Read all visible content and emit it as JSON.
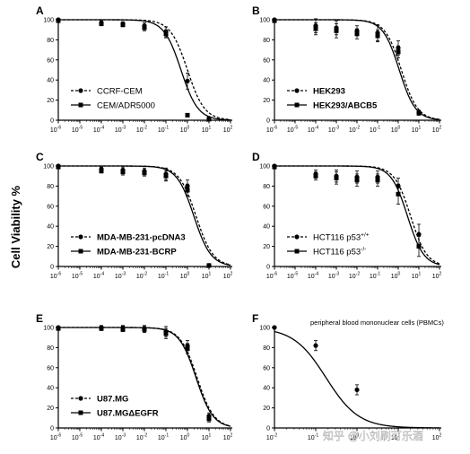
{
  "y_axis_label": "Cell Viability  %",
  "watermark": "知乎 @小刘刷可乐酒",
  "chart_data": [
    {
      "panel": "A",
      "type": "scatter",
      "xscale": "log",
      "xlim": [
        -6,
        2
      ],
      "ylim": [
        0,
        100
      ],
      "x_ticks": [
        -6,
        -5,
        -4,
        -3,
        -2,
        -1,
        0,
        1,
        2
      ],
      "y_ticks": [
        0,
        20,
        40,
        60,
        80,
        100
      ],
      "legend_style": "normal",
      "legend_placement": "bottom-left",
      "series": [
        {
          "name": "CCRF-CEM",
          "marker": "circle",
          "line": "dashed",
          "ic50_log": 0.0,
          "points": [
            [
              -6,
              100,
              1
            ],
            [
              -4,
              97,
              2
            ],
            [
              -3,
              96,
              2
            ],
            [
              -2,
              94,
              3
            ],
            [
              -1,
              88,
              5
            ],
            [
              0,
              39,
              8
            ],
            [
              1,
              2,
              1
            ]
          ]
        },
        {
          "name": "CEM/ADR5000",
          "marker": "square",
          "line": "solid",
          "ic50_log": -0.3,
          "points": [
            [
              -6,
              99,
              1
            ],
            [
              -4,
              96,
              2
            ],
            [
              -3,
              95,
              2
            ],
            [
              -2,
              92,
              3
            ],
            [
              -1,
              86,
              4
            ],
            [
              0,
              5,
              1
            ],
            [
              1,
              1,
              1
            ]
          ]
        }
      ]
    },
    {
      "panel": "B",
      "type": "scatter",
      "xscale": "log",
      "xlim": [
        -6,
        2
      ],
      "ylim": [
        0,
        100
      ],
      "x_ticks": [
        -6,
        -5,
        -4,
        -3,
        -2,
        -1,
        0,
        1,
        2
      ],
      "y_ticks": [
        0,
        20,
        40,
        60,
        80,
        100
      ],
      "legend_style": "bold",
      "legend_placement": "bottom-left",
      "series": [
        {
          "name": "HEK293",
          "marker": "circle",
          "line": "dashed",
          "ic50_log": 0.15,
          "points": [
            [
              -6,
              100,
              1
            ],
            [
              -4,
              94,
              7
            ],
            [
              -3,
              92,
              7
            ],
            [
              -2,
              89,
              5
            ],
            [
              -1,
              87,
              8
            ],
            [
              0,
              72,
              7
            ],
            [
              1,
              8,
              2
            ]
          ]
        },
        {
          "name": "HEK293/ABCB5",
          "marker": "square",
          "line": "solid",
          "ic50_log": 0.05,
          "points": [
            [
              -6,
              99,
              1
            ],
            [
              -4,
              91,
              6
            ],
            [
              -3,
              89,
              7
            ],
            [
              -2,
              86,
              5
            ],
            [
              -1,
              84,
              6
            ],
            [
              0,
              68,
              6
            ],
            [
              1,
              7,
              2
            ]
          ]
        }
      ]
    },
    {
      "panel": "C",
      "type": "scatter",
      "xscale": "log",
      "xlim": [
        -6,
        2
      ],
      "ylim": [
        0,
        100
      ],
      "x_ticks": [
        -6,
        -5,
        -4,
        -3,
        -2,
        -1,
        0,
        1,
        2
      ],
      "y_ticks": [
        0,
        20,
        40,
        60,
        80,
        100
      ],
      "legend_style": "bold",
      "legend_placement": "bottom-left",
      "series": [
        {
          "name": "MDA-MB-231-pcDNA3",
          "marker": "circle",
          "line": "dashed",
          "ic50_log": 0.4,
          "points": [
            [
              -6,
              100,
              1
            ],
            [
              -4,
              97,
              2
            ],
            [
              -3,
              96,
              3
            ],
            [
              -2,
              95,
              3
            ],
            [
              -1,
              92,
              6
            ],
            [
              0,
              80,
              6
            ],
            [
              1,
              1,
              1
            ]
          ]
        },
        {
          "name": "MDA-MB-231-BCRP",
          "marker": "square",
          "line": "solid",
          "ic50_log": 0.3,
          "points": [
            [
              -6,
              99,
              1
            ],
            [
              -4,
              95,
              2
            ],
            [
              -3,
              94,
              3
            ],
            [
              -2,
              93,
              3
            ],
            [
              -1,
              90,
              5
            ],
            [
              0,
              76,
              6
            ],
            [
              1,
              1,
              1
            ]
          ]
        }
      ]
    },
    {
      "panel": "D",
      "type": "scatter",
      "xscale": "log",
      "xlim": [
        -6,
        2
      ],
      "ylim": [
        0,
        100
      ],
      "x_ticks": [
        -6,
        -5,
        -4,
        -3,
        -2,
        -1,
        0,
        1,
        2
      ],
      "y_ticks": [
        0,
        20,
        40,
        60,
        80,
        100
      ],
      "legend_style": "normal",
      "legend_placement": "bottom-left",
      "series": [
        {
          "name": "HCT116 p53",
          "name_sup": "+/+",
          "marker": "circle",
          "line": "dashed",
          "ic50_log": 0.6,
          "points": [
            [
              -6,
              100,
              1
            ],
            [
              -4,
              92,
              4
            ],
            [
              -3,
              90,
              6
            ],
            [
              -2,
              89,
              6
            ],
            [
              -1,
              89,
              6
            ],
            [
              0,
              80,
              8
            ],
            [
              1,
              32,
              10
            ]
          ]
        },
        {
          "name": "HCT116 p53",
          "name_sup": "-/-",
          "marker": "square",
          "line": "solid",
          "ic50_log": 0.45,
          "points": [
            [
              -6,
              99,
              1
            ],
            [
              -4,
              90,
              4
            ],
            [
              -3,
              88,
              6
            ],
            [
              -2,
              86,
              6
            ],
            [
              -1,
              86,
              6
            ],
            [
              0,
              72,
              10
            ],
            [
              1,
              20,
              10
            ]
          ]
        }
      ]
    },
    {
      "panel": "E",
      "type": "scatter",
      "xscale": "log",
      "xlim": [
        -6,
        2
      ],
      "ylim": [
        0,
        100
      ],
      "x_ticks": [
        -6,
        -5,
        -4,
        -3,
        -2,
        -1,
        0,
        1,
        2
      ],
      "y_ticks": [
        0,
        20,
        40,
        60,
        80,
        100
      ],
      "legend_style": "bold",
      "legend_placement": "bottom-left",
      "series": [
        {
          "name": "U87.MG",
          "marker": "circle",
          "line": "dashed",
          "ic50_log": 0.45,
          "points": [
            [
              -6,
              100,
              1
            ],
            [
              -4,
              100,
              2
            ],
            [
              -3,
              100,
              2
            ],
            [
              -2,
              99,
              3
            ],
            [
              -1,
              96,
              5
            ],
            [
              0,
              82,
              5
            ],
            [
              1,
              12,
              3
            ]
          ]
        },
        {
          "name": "U87.MGΔEGFR",
          "marker": "square",
          "line": "solid",
          "ic50_log": 0.4,
          "points": [
            [
              -6,
              99,
              1
            ],
            [
              -4,
              99,
              2
            ],
            [
              -3,
              98,
              2
            ],
            [
              -2,
              98,
              3
            ],
            [
              -1,
              94,
              5
            ],
            [
              0,
              79,
              5
            ],
            [
              1,
              9,
              3
            ]
          ]
        }
      ]
    },
    {
      "panel": "F",
      "type": "scatter",
      "xscale": "log",
      "xlim": [
        -2,
        2
      ],
      "ylim": [
        0,
        100
      ],
      "x_ticks": [
        -2,
        -1,
        0,
        1,
        2
      ],
      "y_ticks": [
        0,
        20,
        40,
        60,
        80,
        100
      ],
      "title": "peripheral blood mononuclear cells (PBMCs)",
      "legend_style": "none",
      "series": [
        {
          "name": "",
          "marker": "circle",
          "line": "solid",
          "ic50_log": -0.75,
          "points": [
            [
              -2,
              100,
              1
            ],
            [
              -1,
              82,
              5
            ],
            [
              0,
              38,
              5
            ]
          ]
        }
      ]
    }
  ]
}
